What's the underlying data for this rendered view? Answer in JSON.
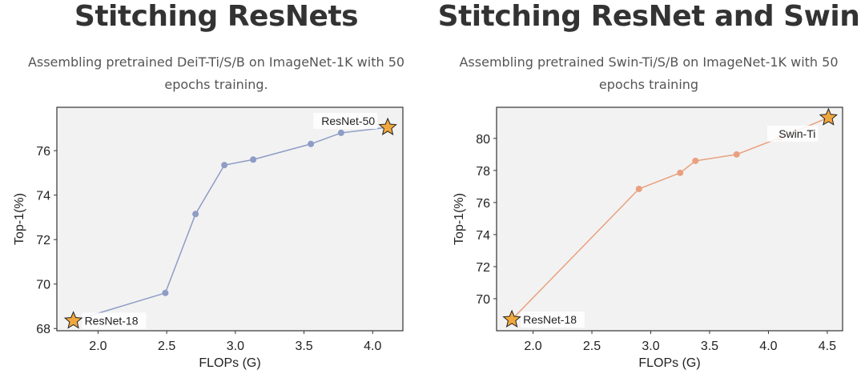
{
  "chart_data": [
    {
      "type": "line",
      "title": "Stitching ResNets",
      "subtitle": "Assembling pretrained DeiT-Ti/S/B on ImageNet-1K with 50 epochs training.",
      "xlabel": "FLOPs (G)",
      "ylabel": "Top-1(%)",
      "xlim": [
        1.7,
        4.22
      ],
      "ylim": [
        67.9,
        77.95
      ],
      "xticks": [
        "2.0",
        "2.5",
        "3.0",
        "3.5",
        "4.0"
      ],
      "yticks": [
        "68",
        "70",
        "72",
        "74",
        "76"
      ],
      "grid": false,
      "color": "#8e9cc6",
      "star_color": "#f0a73c",
      "series": [
        {
          "x": [
            2.49,
            2.71,
            2.92,
            3.13,
            3.55,
            3.77
          ],
          "y": [
            69.6,
            73.15,
            75.35,
            75.6,
            76.3,
            76.8
          ]
        }
      ],
      "anchors": [
        {
          "label": "ResNet-18",
          "x": 1.82,
          "y": 68.35
        },
        {
          "label": "ResNet-50",
          "x": 4.11,
          "y": 77.05
        }
      ]
    },
    {
      "type": "line",
      "title": "Stitching ResNet and Swin",
      "subtitle": "Assembling pretrained Swin-Ti/S/B on ImageNet-1K with 50 epochs training",
      "xlabel": "FLOPs (G)",
      "ylabel": "Top-1(%)",
      "xlim": [
        1.69,
        4.63
      ],
      "ylim": [
        68.0,
        81.94
      ],
      "xticks": [
        "2.0",
        "2.5",
        "3.0",
        "3.5",
        "4.0",
        "4.5"
      ],
      "yticks": [
        "70",
        "72",
        "74",
        "76",
        "78",
        "80"
      ],
      "grid": false,
      "color": "#eaa07e",
      "star_color": "#f0a73c",
      "series": [
        {
          "x": [
            2.9,
            3.25,
            3.38,
            3.73,
            4.1
          ],
          "y": [
            76.85,
            77.85,
            78.6,
            79.0,
            80.05
          ]
        }
      ],
      "anchors": [
        {
          "label": "ResNet-18",
          "x": 1.82,
          "y": 68.7
        },
        {
          "label": "Swin-Ti",
          "x": 4.51,
          "y": 81.3
        }
      ]
    }
  ]
}
